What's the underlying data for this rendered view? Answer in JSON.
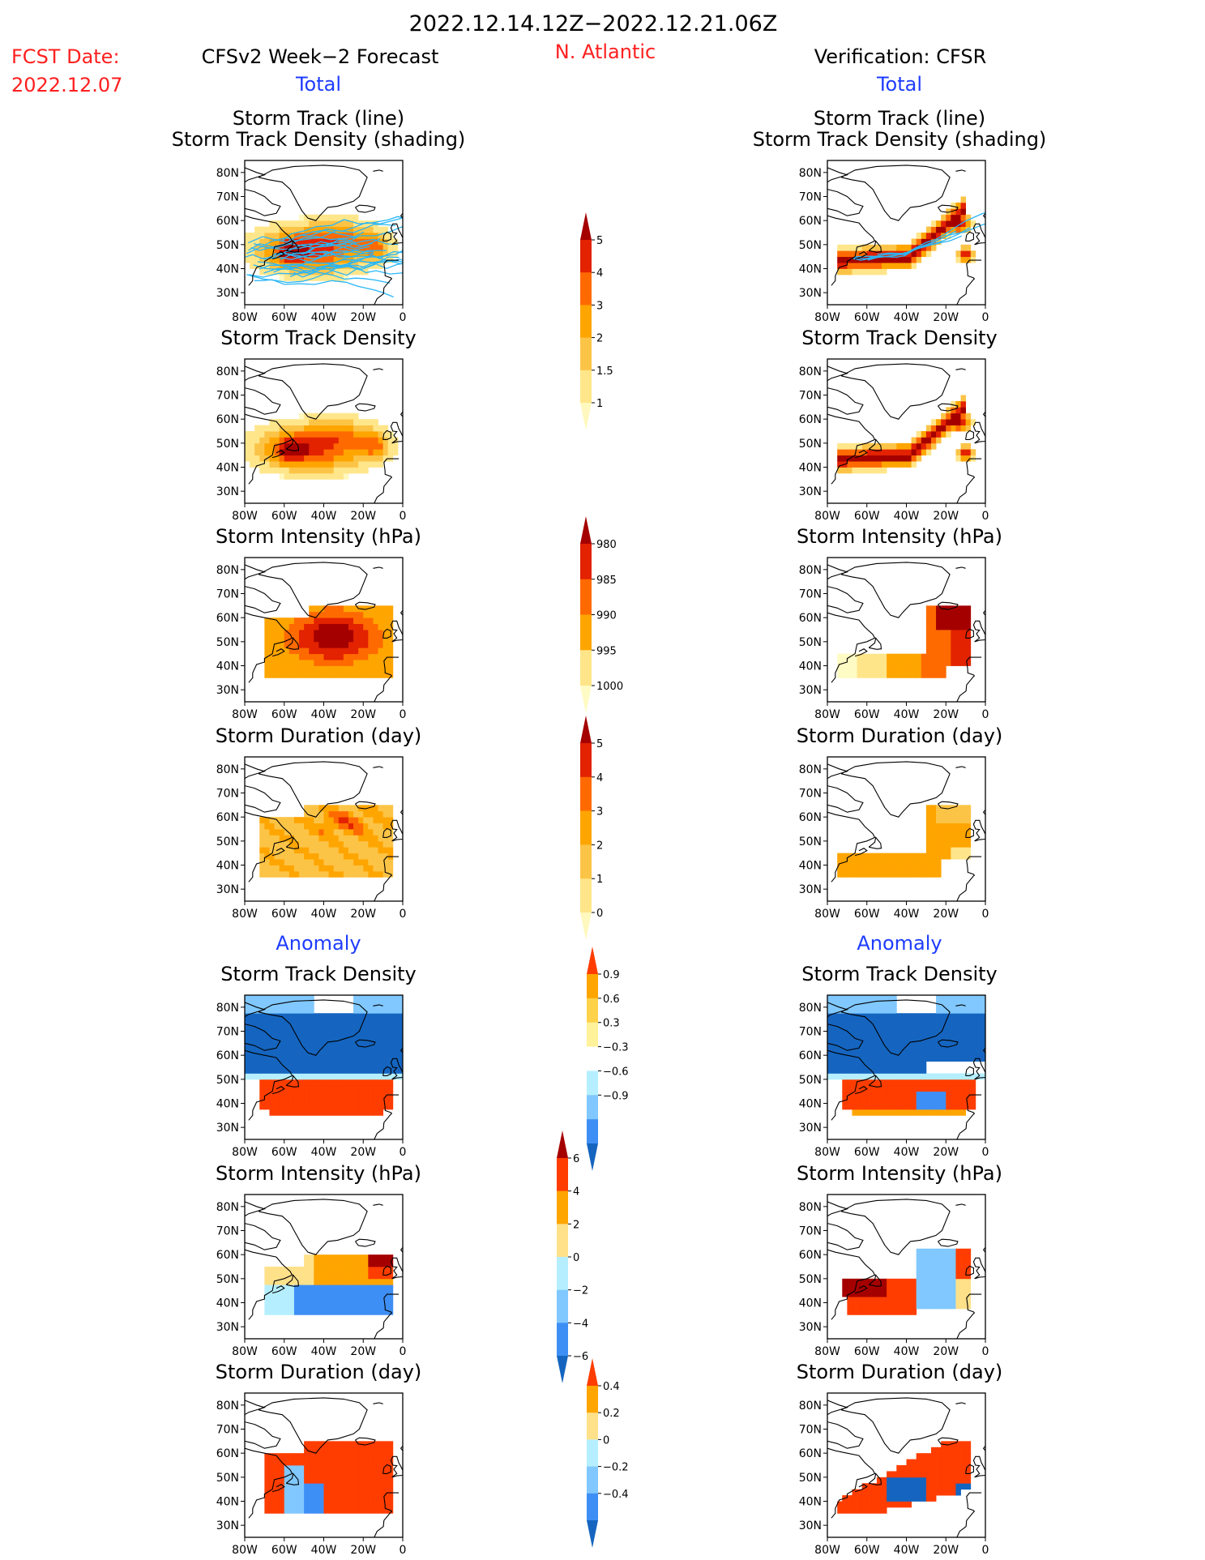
{
  "header": {
    "date_range": "2022.12.14.12Z−2022.12.21.06Z",
    "region": "N. Atlantic",
    "fcst_label": "FCST Date:",
    "fcst_date": "2022.12.07",
    "left_title": "CFSv2 Week−2 Forecast",
    "right_title": "Verification: CFSR",
    "total_label": "Total",
    "anomaly_label": "Anomaly"
  },
  "colors": {
    "header_red": "#ff2020",
    "header_blue": "#1e3cff",
    "track_line": "#29b6f6",
    "land_outline": "#000000"
  },
  "axis": {
    "lat_ticks": [
      "30N",
      "40N",
      "50N",
      "60N",
      "70N",
      "80N"
    ],
    "lon_ticks": [
      "80W",
      "60W",
      "40W",
      "20W",
      "0"
    ]
  },
  "chart_data": [
    {
      "type": "heatmap",
      "panel": "forecast",
      "section": "Total",
      "title_lines": [
        "Storm Track (line)",
        "Storm Track Density (shading)"
      ],
      "scale": "density",
      "has_tracks": true
    },
    {
      "type": "heatmap",
      "panel": "verification",
      "section": "Total",
      "title_lines": [
        "Storm Track (line)",
        "Storm Track Density (shading)"
      ],
      "scale": "density",
      "has_tracks": true
    },
    {
      "type": "heatmap",
      "panel": "forecast",
      "section": "Total",
      "title_lines": [
        "Storm Track Density"
      ],
      "scale": "density"
    },
    {
      "type": "heatmap",
      "panel": "verification",
      "section": "Total",
      "title_lines": [
        "Storm Track Density"
      ],
      "scale": "density"
    },
    {
      "type": "heatmap",
      "panel": "forecast",
      "section": "Total",
      "title_lines": [
        "Storm Intensity (hPa)"
      ],
      "scale": "intensity"
    },
    {
      "type": "heatmap",
      "panel": "verification",
      "section": "Total",
      "title_lines": [
        "Storm Intensity (hPa)"
      ],
      "scale": "intensity"
    },
    {
      "type": "heatmap",
      "panel": "forecast",
      "section": "Total",
      "title_lines": [
        "Storm Duration (day)"
      ],
      "scale": "duration"
    },
    {
      "type": "heatmap",
      "panel": "verification",
      "section": "Total",
      "title_lines": [
        "Storm Duration (day)"
      ],
      "scale": "duration"
    },
    {
      "type": "heatmap",
      "panel": "forecast",
      "section": "Anomaly",
      "title_lines": [
        "Storm Track Density"
      ],
      "scale": "density_anom"
    },
    {
      "type": "heatmap",
      "panel": "verification",
      "section": "Anomaly",
      "title_lines": [
        "Storm Track Density"
      ],
      "scale": "density_anom"
    },
    {
      "type": "heatmap",
      "panel": "forecast",
      "section": "Anomaly",
      "title_lines": [
        "Storm Intensity (hPa)"
      ],
      "scale": "intensity_anom"
    },
    {
      "type": "heatmap",
      "panel": "verification",
      "section": "Anomaly",
      "title_lines": [
        "Storm Intensity (hPa)"
      ],
      "scale": "intensity_anom"
    },
    {
      "type": "heatmap",
      "panel": "forecast",
      "section": "Anomaly",
      "title_lines": [
        "Storm Duration (day)"
      ],
      "scale": "duration_anom"
    },
    {
      "type": "heatmap",
      "panel": "verification",
      "section": "Anomaly",
      "title_lines": [
        "Storm Duration (day)"
      ],
      "scale": "duration_anom"
    }
  ],
  "colorbars": [
    {
      "id": "density",
      "labels": [
        "1",
        "1.5",
        "2",
        "3",
        "4",
        "5"
      ],
      "colors": [
        "#fff8bf",
        "#ffe68a",
        "#fcc447",
        "#ffa500",
        "#ff6a00",
        "#e32200",
        "#a50000"
      ]
    },
    {
      "id": "intensity",
      "labels": [
        "1000",
        "995",
        "990",
        "985",
        "980"
      ],
      "colors": [
        "#fffbc4",
        "#ffe58a",
        "#ffa500",
        "#ff6a00",
        "#e32200",
        "#a50000"
      ]
    },
    {
      "id": "duration",
      "labels": [
        "0",
        "1",
        "2",
        "3",
        "4",
        "5"
      ],
      "colors": [
        "#fff8bf",
        "#ffe58a",
        "#fcc447",
        "#ffa500",
        "#ff6a00",
        "#e32200",
        "#a50000"
      ]
    },
    {
      "id": "density_anom",
      "labels": [
        "0.9",
        "0.6",
        "0.3",
        "−0.3",
        "−0.6",
        "−0.9"
      ],
      "colors": [
        "#ff3d00",
        "#ffa500",
        "#ffd24a",
        "#fff29a",
        "#ffffff",
        "#b5efff",
        "#80c8ff",
        "#3e8ff5",
        "#1565c0"
      ]
    },
    {
      "id": "intensity_anom",
      "labels": [
        "6",
        "4",
        "2",
        "0",
        "−2",
        "−4",
        "−6"
      ],
      "colors": [
        "#a50000",
        "#ff3d00",
        "#ffa500",
        "#ffe18a",
        "#b5efff",
        "#80c8ff",
        "#3e8ff5",
        "#1565c0"
      ]
    },
    {
      "id": "duration_anom",
      "labels": [
        "0.4",
        "0.2",
        "0",
        "−0.2",
        "−0.4"
      ],
      "colors": [
        "#ff3d00",
        "#ffa500",
        "#ffe18a",
        "#b5efff",
        "#80c8ff",
        "#3e8ff5",
        "#1565c0"
      ]
    }
  ]
}
